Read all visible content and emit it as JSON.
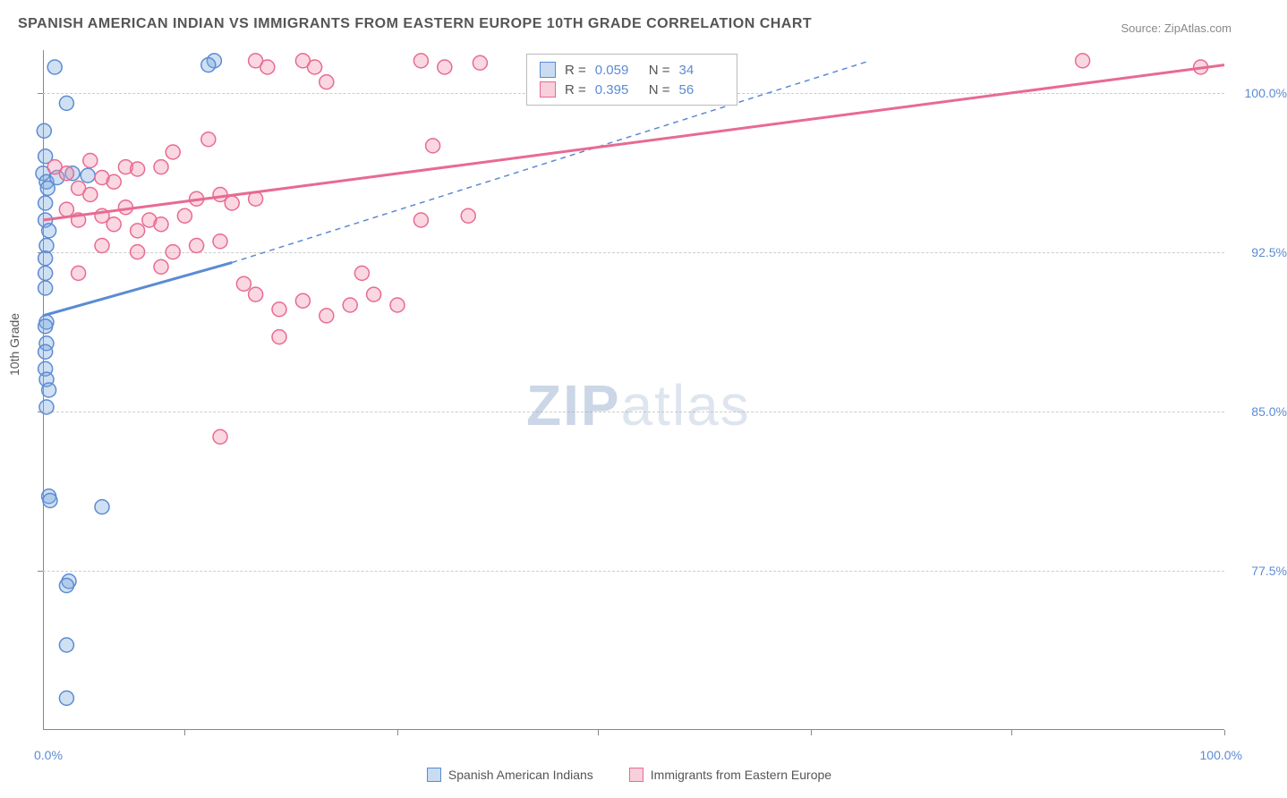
{
  "title": "SPANISH AMERICAN INDIAN VS IMMIGRANTS FROM EASTERN EUROPE 10TH GRADE CORRELATION CHART",
  "source": "Source: ZipAtlas.com",
  "axis": {
    "y_title": "10th Grade",
    "x_min_label": "0.0%",
    "x_max_label": "100.0%",
    "y_ticks": [
      {
        "v": 100.0,
        "label": "100.0%"
      },
      {
        "v": 92.5,
        "label": "92.5%"
      },
      {
        "v": 85.0,
        "label": "85.0%"
      },
      {
        "v": 77.5,
        "label": "77.5%"
      }
    ],
    "xlim": [
      0,
      100
    ],
    "ylim": [
      70,
      102
    ],
    "x_tick_positions": [
      12,
      30,
      47,
      65,
      82,
      100
    ]
  },
  "series": [
    {
      "name": "Spanish American Indians",
      "color_fill": "rgba(120,165,220,0.35)",
      "color_stroke": "#5b8bd4",
      "swatch_fill": "#c9dcf2",
      "swatch_border": "#5b8bd4",
      "R": "0.059",
      "N": "34",
      "trend_solid": {
        "x1": 0,
        "y1": 89.5,
        "x2": 16,
        "y2": 92.0
      },
      "trend_dash": {
        "x1": 16,
        "y1": 92.0,
        "x2": 70,
        "y2": 101.5
      },
      "points": [
        [
          0.1,
          98.2
        ],
        [
          2.0,
          99.5
        ],
        [
          0.2,
          97.0
        ],
        [
          0.0,
          96.2
        ],
        [
          0.3,
          95.8
        ],
        [
          0.4,
          95.5
        ],
        [
          1.2,
          96.0
        ],
        [
          2.5,
          96.2
        ],
        [
          3.8,
          96.1
        ],
        [
          0.2,
          94.8
        ],
        [
          0.2,
          94.0
        ],
        [
          0.5,
          93.5
        ],
        [
          0.3,
          92.8
        ],
        [
          0.2,
          92.2
        ],
        [
          0.2,
          91.5
        ],
        [
          0.2,
          90.8
        ],
        [
          0.3,
          89.2
        ],
        [
          0.2,
          89.0
        ],
        [
          0.3,
          88.2
        ],
        [
          0.2,
          87.8
        ],
        [
          0.2,
          87.0
        ],
        [
          0.3,
          86.5
        ],
        [
          0.5,
          86.0
        ],
        [
          0.3,
          85.2
        ],
        [
          0.5,
          81.0
        ],
        [
          5.0,
          80.5
        ],
        [
          0.6,
          80.8
        ],
        [
          2.2,
          77.0
        ],
        [
          2.0,
          76.8
        ],
        [
          2.0,
          74.0
        ],
        [
          2.0,
          71.5
        ],
        [
          14.5,
          101.5
        ],
        [
          14.0,
          101.3
        ],
        [
          1.0,
          101.2
        ]
      ]
    },
    {
      "name": "Immigrants from Eastern Europe",
      "color_fill": "rgba(240,140,170,0.35)",
      "color_stroke": "#e86a92",
      "swatch_fill": "#f7d0dc",
      "swatch_border": "#e86a92",
      "R": "0.395",
      "N": "56",
      "trend_solid": {
        "x1": 0,
        "y1": 94.0,
        "x2": 100,
        "y2": 101.3
      },
      "points": [
        [
          18,
          101.5
        ],
        [
          19,
          101.2
        ],
        [
          22,
          101.5
        ],
        [
          23,
          101.2
        ],
        [
          24,
          100.5
        ],
        [
          32,
          101.5
        ],
        [
          34,
          101.2
        ],
        [
          37,
          101.4
        ],
        [
          1,
          96.5
        ],
        [
          2,
          96.2
        ],
        [
          4,
          96.8
        ],
        [
          5,
          96.0
        ],
        [
          7,
          96.5
        ],
        [
          3,
          95.5
        ],
        [
          4,
          95.2
        ],
        [
          6,
          95.8
        ],
        [
          8,
          96.4
        ],
        [
          10,
          96.5
        ],
        [
          11,
          97.2
        ],
        [
          14,
          97.8
        ],
        [
          2,
          94.5
        ],
        [
          3,
          94.0
        ],
        [
          5,
          94.2
        ],
        [
          6,
          93.8
        ],
        [
          7,
          94.6
        ],
        [
          8,
          93.5
        ],
        [
          9,
          94.0
        ],
        [
          10,
          93.8
        ],
        [
          12,
          94.2
        ],
        [
          13,
          95.0
        ],
        [
          15,
          95.2
        ],
        [
          16,
          94.8
        ],
        [
          18,
          95.0
        ],
        [
          5,
          92.8
        ],
        [
          8,
          92.5
        ],
        [
          11,
          92.5
        ],
        [
          13,
          92.8
        ],
        [
          15,
          93.0
        ],
        [
          3,
          91.5
        ],
        [
          10,
          91.8
        ],
        [
          17,
          91.0
        ],
        [
          18,
          90.5
        ],
        [
          20,
          89.8
        ],
        [
          22,
          90.2
        ],
        [
          24,
          89.5
        ],
        [
          26,
          90.0
        ],
        [
          28,
          90.5
        ],
        [
          30,
          90.0
        ],
        [
          32,
          94.0
        ],
        [
          36,
          94.2
        ],
        [
          20,
          88.5
        ],
        [
          27,
          91.5
        ],
        [
          15,
          83.8
        ],
        [
          88,
          101.5
        ],
        [
          98,
          101.2
        ],
        [
          33,
          97.5
        ]
      ]
    }
  ],
  "watermark": {
    "zip": "ZIP",
    "rest": "atlas"
  },
  "legend": {
    "series1": "Spanish American Indians",
    "series2": "Immigrants from Eastern Europe"
  },
  "stats_labels": {
    "R": "R =",
    "N": "N ="
  },
  "colors": {
    "text": "#555555",
    "accent": "#5b8bd4",
    "grid": "#cccccc",
    "border": "#888888"
  },
  "marker_radius": 8
}
